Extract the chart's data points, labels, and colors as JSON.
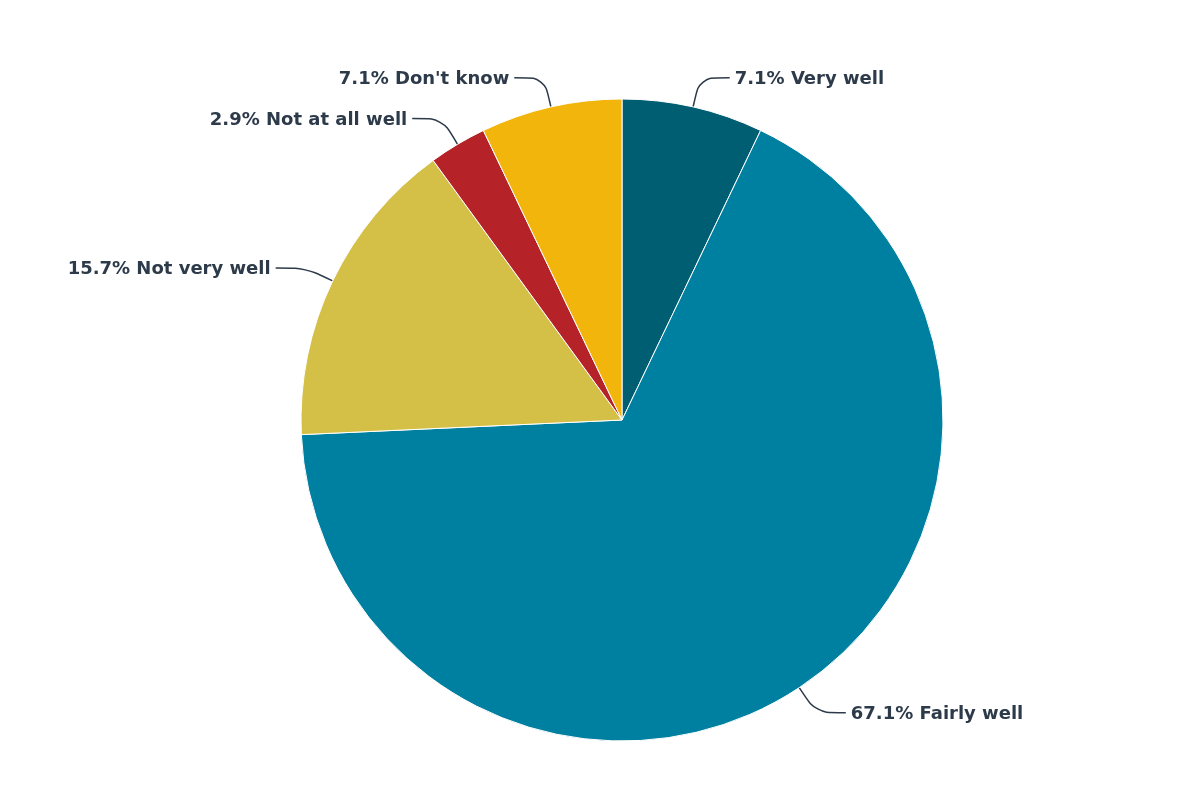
{
  "chart_data": {
    "type": "pie",
    "categories": [
      "Very well",
      "Fairly well",
      "Not very well",
      "Not at all well",
      "Don't know"
    ],
    "values": [
      7.1,
      67.1,
      15.7,
      2.9,
      7.1
    ],
    "value_labels": [
      "7.1%",
      "67.1%",
      "15.7%",
      "2.9%",
      "7.1%"
    ],
    "colors": [
      "#005e73",
      "#0080a0",
      "#d4bf47",
      "#b52228",
      "#f2b50c"
    ],
    "legend": false
  }
}
